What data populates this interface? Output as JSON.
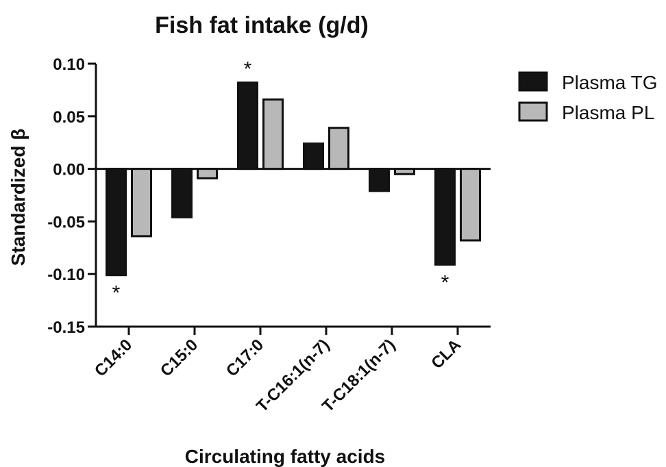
{
  "chart_data": {
    "type": "bar",
    "title": "Fish fat intake  (g/d)",
    "xlabel": "Circulating fatty acids",
    "ylabel": "Standardized β",
    "categories": [
      "C14:0",
      "C15:0",
      "C17:0",
      "T-C16:1(n-7)",
      "T-C18:1(n-7)",
      "CLA"
    ],
    "series": [
      {
        "name": "Plasma TG",
        "color": "#141414",
        "values": [
          -0.101,
          -0.046,
          0.082,
          0.024,
          -0.021,
          -0.091
        ],
        "significant": [
          "*",
          "",
          "*",
          "",
          "",
          "*"
        ]
      },
      {
        "name": "Plasma PL",
        "color": "#b8b8b8",
        "values": [
          -0.064,
          -0.009,
          0.066,
          0.039,
          -0.005,
          -0.068
        ],
        "significant": [
          "",
          "",
          "",
          "",
          "",
          ""
        ]
      }
    ],
    "ylim": [
      -0.15,
      0.1
    ],
    "yticks": [
      "0.10",
      "0.05",
      "0.00",
      "-0.05",
      "-0.10",
      "-0.15"
    ],
    "ytick_values": [
      0.1,
      0.05,
      0.0,
      -0.05,
      -0.1,
      -0.15
    ],
    "grid": false,
    "legend_position": "right"
  }
}
